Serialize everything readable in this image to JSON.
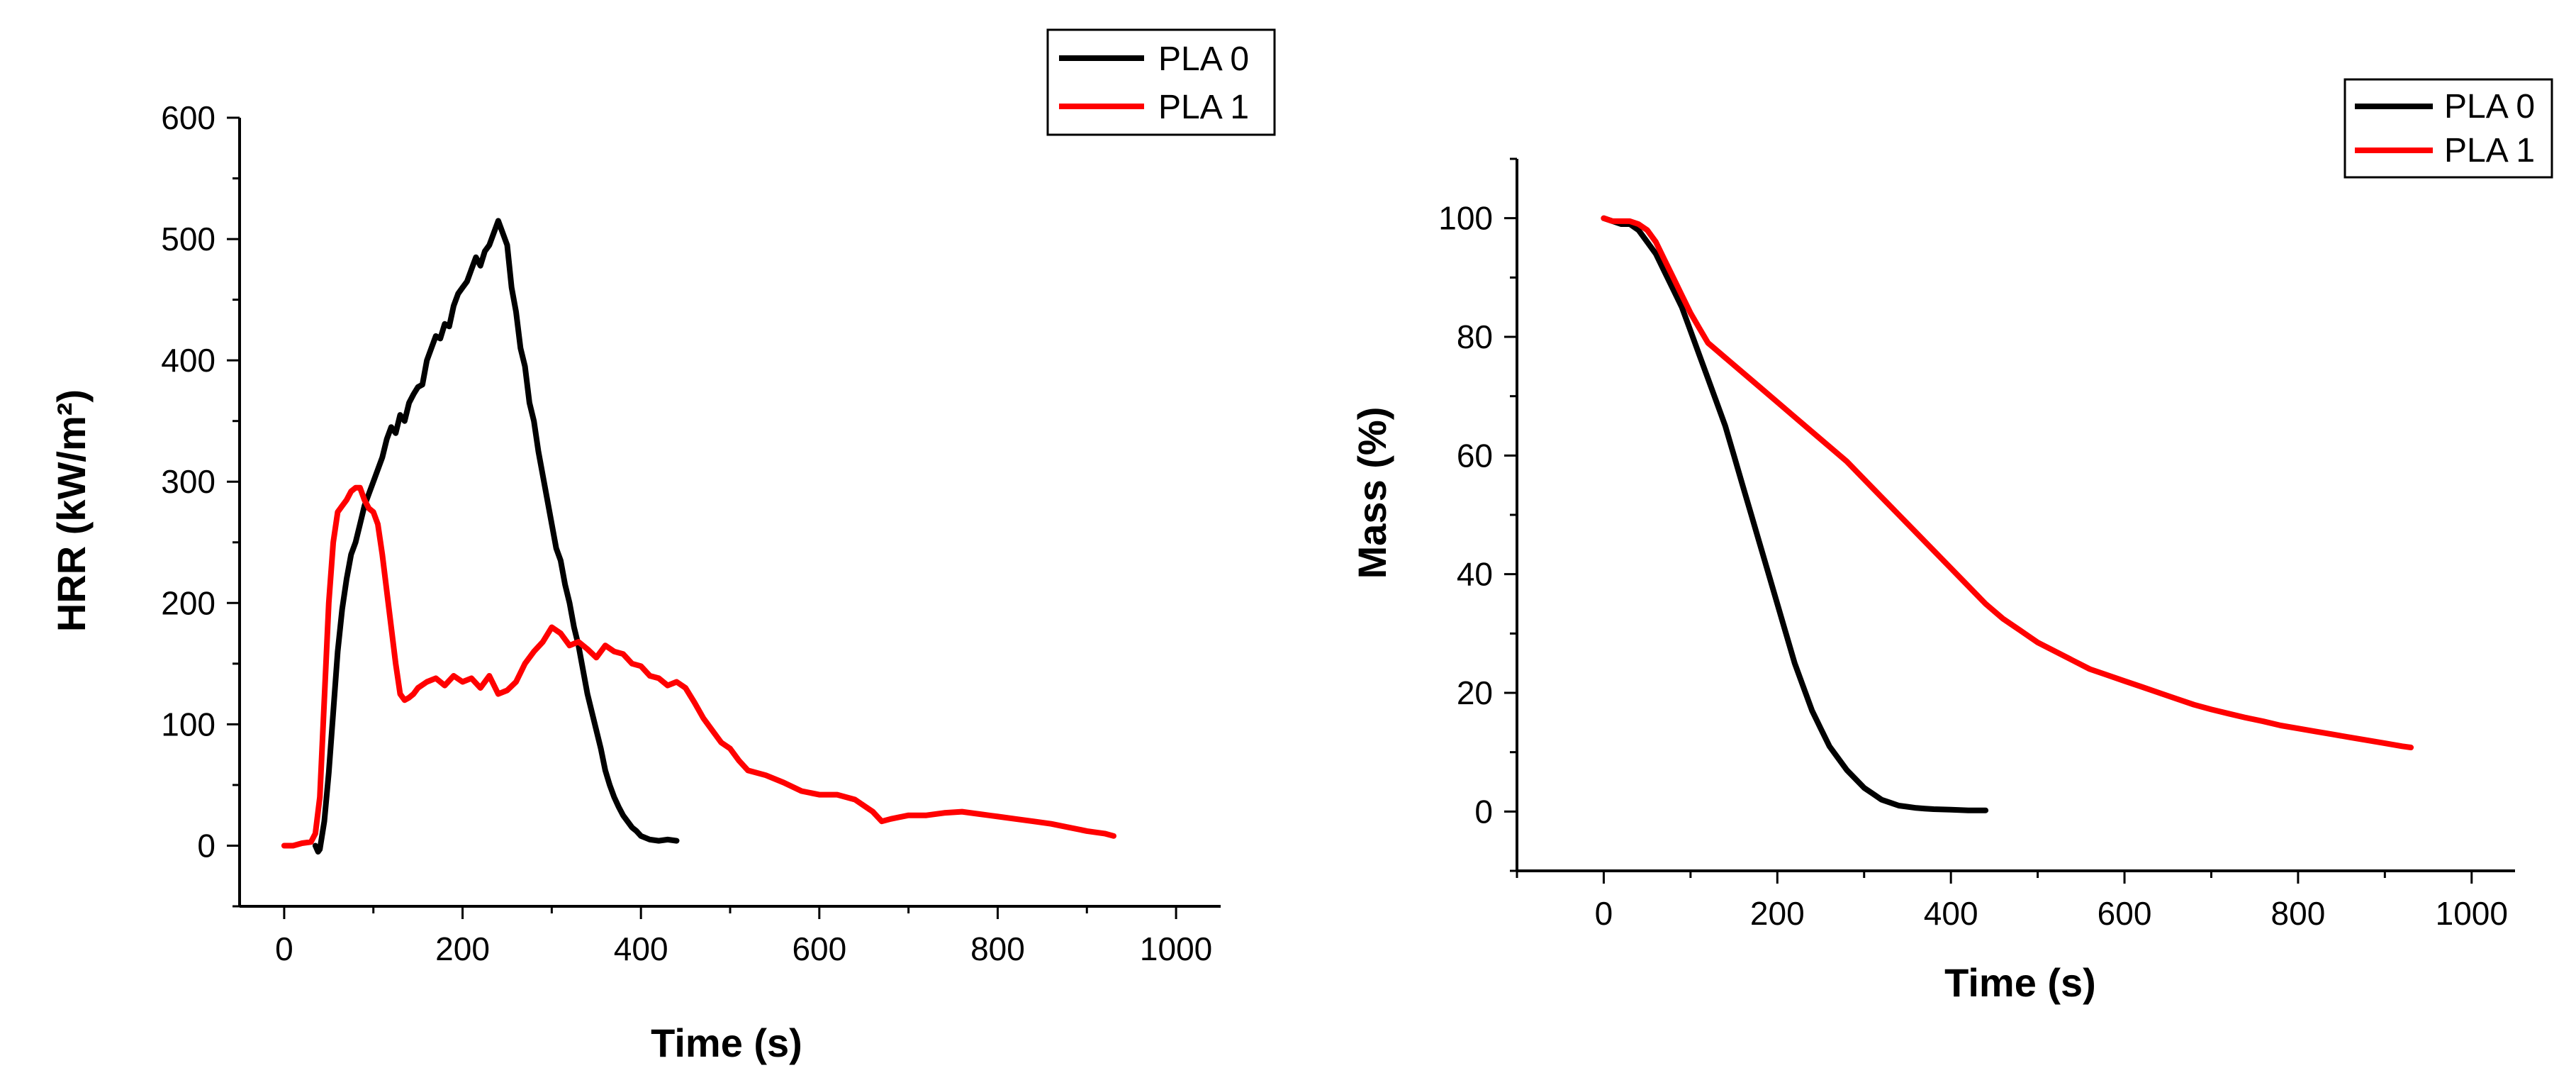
{
  "chart_data": [
    {
      "type": "line",
      "title": "",
      "xlabel": "Time (s)",
      "ylabel": "HRR (kW/m²)",
      "xlim": [
        -50,
        1050
      ],
      "ylim": [
        -50,
        600
      ],
      "xticks": [
        0,
        200,
        400,
        600,
        800,
        1000
      ],
      "yticks": [
        0,
        100,
        200,
        300,
        400,
        500,
        600
      ],
      "xtick_labels": [
        "0",
        "200",
        "400",
        "600",
        "800",
        "1000"
      ],
      "ytick_labels": [
        "0",
        "100",
        "200",
        "300",
        "400",
        "500",
        "600"
      ],
      "legend": "top-right",
      "series": [
        {
          "name": "PLA 0",
          "color": "#000000",
          "x": [
            35,
            38,
            40,
            45,
            50,
            55,
            60,
            65,
            70,
            75,
            80,
            85,
            90,
            95,
            100,
            105,
            110,
            115,
            120,
            125,
            130,
            135,
            140,
            145,
            150,
            155,
            160,
            165,
            170,
            175,
            180,
            185,
            190,
            195,
            200,
            205,
            210,
            215,
            220,
            225,
            230,
            235,
            240,
            245,
            250,
            255,
            260,
            265,
            270,
            275,
            280,
            285,
            290,
            295,
            300,
            305,
            310,
            315,
            320,
            325,
            330,
            335,
            340,
            345,
            350,
            355,
            360,
            365,
            370,
            375,
            380,
            385,
            390,
            395,
            400,
            410,
            420,
            430,
            440
          ],
          "y": [
            0,
            -5,
            -3,
            20,
            60,
            110,
            160,
            195,
            220,
            240,
            250,
            265,
            280,
            290,
            300,
            310,
            320,
            335,
            345,
            340,
            355,
            350,
            365,
            372,
            378,
            380,
            400,
            410,
            420,
            418,
            430,
            428,
            445,
            455,
            460,
            465,
            475,
            485,
            478,
            490,
            495,
            505,
            515,
            505,
            495,
            460,
            440,
            410,
            395,
            365,
            350,
            325,
            305,
            285,
            265,
            245,
            235,
            215,
            200,
            180,
            165,
            145,
            125,
            110,
            95,
            80,
            62,
            50,
            40,
            32,
            25,
            20,
            15,
            12,
            8,
            5,
            4,
            5,
            4
          ]
        },
        {
          "name": "PLA 1",
          "color": "#ff0000",
          "x": [
            0,
            10,
            20,
            30,
            35,
            40,
            45,
            50,
            55,
            60,
            65,
            70,
            75,
            80,
            85,
            90,
            95,
            100,
            105,
            110,
            115,
            120,
            125,
            130,
            135,
            140,
            145,
            150,
            160,
            170,
            180,
            190,
            200,
            210,
            220,
            230,
            240,
            250,
            260,
            270,
            280,
            290,
            300,
            310,
            320,
            330,
            340,
            350,
            360,
            370,
            380,
            390,
            400,
            410,
            420,
            430,
            440,
            450,
            460,
            470,
            480,
            490,
            500,
            510,
            520,
            540,
            560,
            580,
            600,
            620,
            640,
            660,
            670,
            680,
            700,
            720,
            740,
            760,
            780,
            800,
            820,
            840,
            860,
            880,
            900,
            920,
            930
          ],
          "y": [
            0,
            0,
            2,
            3,
            10,
            40,
            120,
            200,
            250,
            275,
            280,
            285,
            292,
            295,
            295,
            285,
            278,
            275,
            265,
            240,
            210,
            180,
            150,
            125,
            120,
            122,
            125,
            130,
            135,
            138,
            132,
            140,
            135,
            138,
            130,
            140,
            125,
            128,
            135,
            150,
            160,
            168,
            180,
            175,
            165,
            168,
            162,
            155,
            165,
            160,
            158,
            150,
            148,
            140,
            138,
            132,
            135,
            130,
            118,
            105,
            95,
            85,
            80,
            70,
            62,
            58,
            52,
            45,
            42,
            42,
            38,
            28,
            20,
            22,
            25,
            25,
            27,
            28,
            26,
            24,
            22,
            20,
            18,
            15,
            12,
            10,
            8
          ]
        }
      ]
    },
    {
      "type": "line",
      "title": "",
      "xlabel": "Time (s)",
      "ylabel": "Mass (%)",
      "xlim": [
        -100,
        1050
      ],
      "ylim": [
        -10,
        110
      ],
      "xticks": [
        0,
        200,
        400,
        600,
        800,
        1000
      ],
      "yticks": [
        0,
        20,
        40,
        60,
        80,
        100
      ],
      "xtick_labels": [
        "0",
        "200",
        "400",
        "600",
        "800",
        "1000"
      ],
      "ytick_labels": [
        "0",
        "20",
        "40",
        "60",
        "80",
        "100"
      ],
      "legend": "top-right",
      "series": [
        {
          "name": "PLA 0",
          "color": "#000000",
          "x": [
            0,
            10,
            20,
            30,
            40,
            50,
            60,
            70,
            80,
            90,
            100,
            110,
            120,
            130,
            140,
            150,
            160,
            170,
            180,
            190,
            200,
            210,
            220,
            230,
            240,
            250,
            260,
            270,
            280,
            290,
            300,
            310,
            320,
            330,
            340,
            350,
            360,
            370,
            380,
            400,
            420,
            440
          ],
          "y": [
            100,
            99.5,
            99,
            99,
            98,
            96,
            94,
            91,
            88,
            85,
            81,
            77,
            73,
            69,
            65,
            60,
            55,
            50,
            45,
            40,
            35,
            30,
            25,
            21,
            17,
            14,
            11,
            9,
            7,
            5.5,
            4,
            3,
            2,
            1.5,
            1,
            0.8,
            0.6,
            0.5,
            0.4,
            0.3,
            0.2,
            0.2
          ]
        },
        {
          "name": "PLA 1",
          "color": "#ff0000",
          "x": [
            0,
            10,
            20,
            30,
            40,
            50,
            60,
            70,
            80,
            90,
            100,
            110,
            120,
            140,
            160,
            180,
            200,
            220,
            240,
            260,
            280,
            300,
            320,
            340,
            360,
            380,
            400,
            420,
            440,
            460,
            480,
            500,
            520,
            540,
            560,
            580,
            600,
            620,
            640,
            660,
            680,
            700,
            720,
            740,
            760,
            780,
            800,
            820,
            840,
            860,
            880,
            900,
            920,
            930
          ],
          "y": [
            100,
            99.5,
            99.5,
            99.5,
            99,
            98,
            96,
            93,
            90,
            87,
            84,
            81.5,
            79,
            76.5,
            74,
            71.5,
            69,
            66.5,
            64,
            61.5,
            59,
            56,
            53,
            50,
            47,
            44,
            41,
            38,
            35,
            32.5,
            30.5,
            28.5,
            27,
            25.5,
            24,
            23,
            22,
            21,
            20,
            19,
            18,
            17.2,
            16.5,
            15.8,
            15.2,
            14.5,
            14,
            13.5,
            13,
            12.5,
            12,
            11.5,
            11,
            10.8
          ]
        }
      ]
    }
  ]
}
